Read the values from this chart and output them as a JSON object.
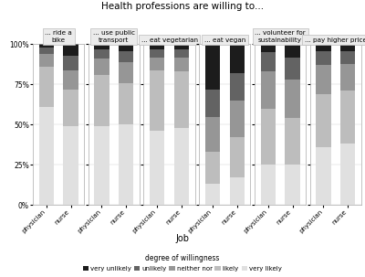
{
  "title": "Health professions are willing to...",
  "facets": [
    "... ride a\nbike",
    "... use public\ntransport",
    "... eat vegetarian",
    "... eat vegan",
    "... volunteer for\nsustainability",
    "... pay higher price"
  ],
  "categories": [
    "physician",
    "nurse"
  ],
  "legend_labels": [
    "very unlikely",
    "unlikely",
    "neither nor",
    "likely",
    "very likely"
  ],
  "colors": [
    "#1c1c1c",
    "#636363",
    "#969696",
    "#bdbdbd",
    "#e0e0e0"
  ],
  "xlabel": "Job",
  "legend_title": "degree of willingness",
  "data": {
    "... ride a\nbike": {
      "physician": [
        0.02,
        0.04,
        0.08,
        0.25,
        0.61
      ],
      "nurse": [
        0.07,
        0.09,
        0.12,
        0.23,
        0.49
      ]
    },
    "... use public\ntransport": {
      "physician": [
        0.03,
        0.06,
        0.1,
        0.32,
        0.49
      ],
      "nurse": [
        0.04,
        0.07,
        0.13,
        0.26,
        0.5
      ]
    },
    "... eat vegetarian": {
      "physician": [
        0.03,
        0.05,
        0.08,
        0.38,
        0.46
      ],
      "nurse": [
        0.03,
        0.05,
        0.09,
        0.35,
        0.48
      ]
    },
    "... eat vegan": {
      "physician": [
        0.28,
        0.17,
        0.22,
        0.2,
        0.13
      ],
      "nurse": [
        0.18,
        0.17,
        0.23,
        0.25,
        0.17
      ]
    },
    "... volunteer for\nsustainability": {
      "physician": [
        0.05,
        0.12,
        0.23,
        0.35,
        0.25
      ],
      "nurse": [
        0.08,
        0.14,
        0.24,
        0.29,
        0.25
      ]
    },
    "... pay higher price": {
      "physician": [
        0.04,
        0.09,
        0.18,
        0.33,
        0.36
      ],
      "nurse": [
        0.04,
        0.08,
        0.17,
        0.33,
        0.38
      ]
    }
  }
}
